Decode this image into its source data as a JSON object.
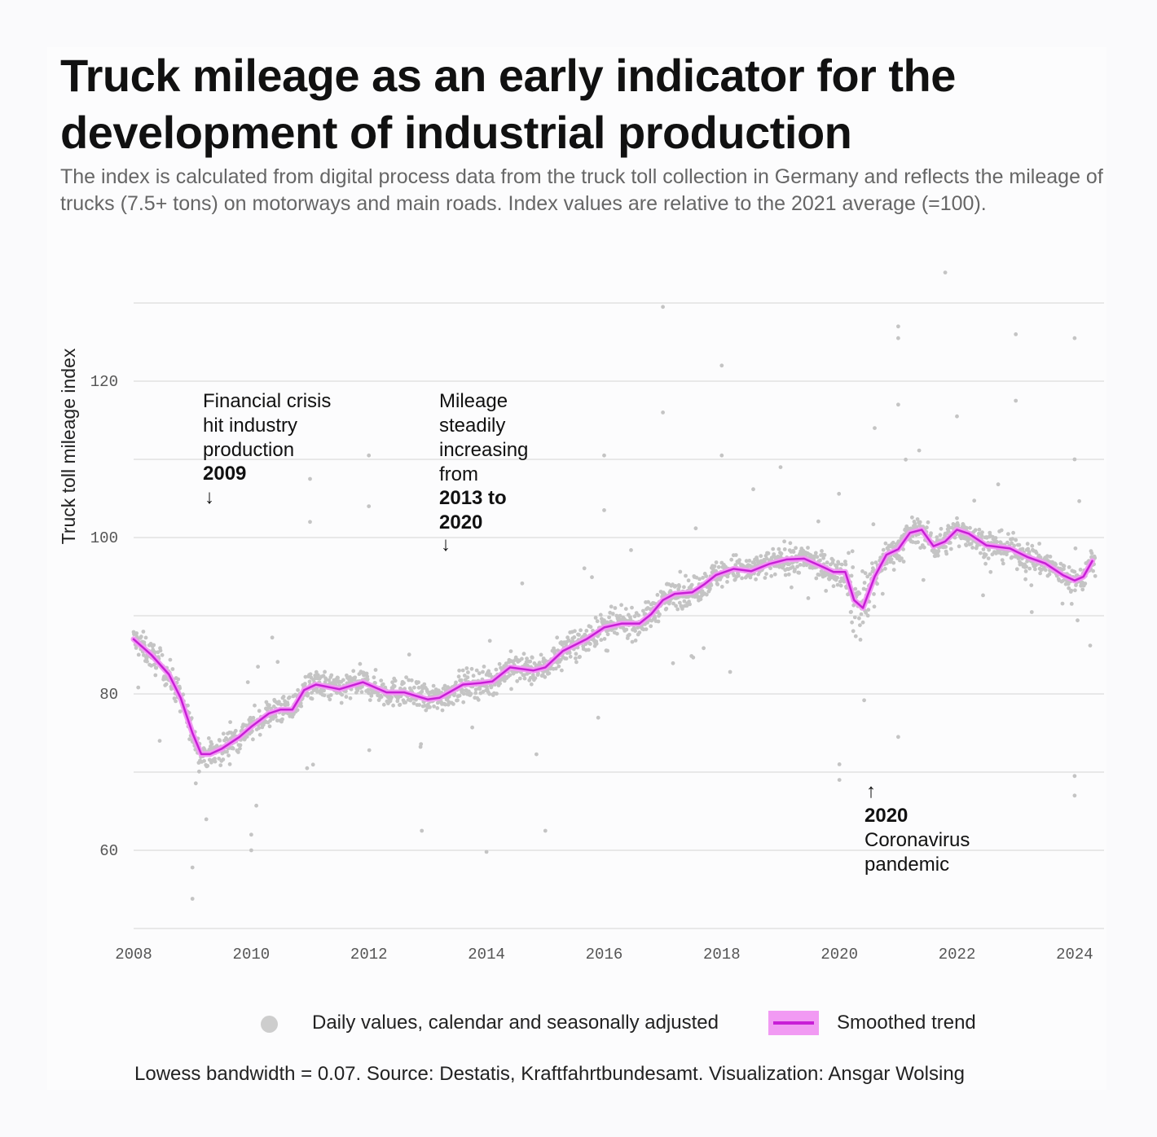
{
  "title": "Truck mileage as an early indicator for the development of industrial production",
  "subtitle": "The index is calculated from digital process data from the truck toll collection in Germany and reflects the mileage of trucks (7.5+ tons) on motorways and main roads. Index values are relative to the 2021 average (=100).",
  "legend": {
    "points_label": "Daily values, calendar and seasonally adjusted",
    "line_label": "Smoothed trend"
  },
  "caption": "Lowess bandwidth = 0.07. Source: Destatis, Kraftfahrtbundesamt. Visualization: Ansgar Wolsing",
  "colors": {
    "trend": "#c81ed6",
    "trend_band": "#f19af3",
    "points": "#c4c4c4",
    "grid": "#d4d4d4"
  },
  "chart_data": {
    "type": "scatter",
    "ylabel": "Truck toll mileage index",
    "xlabel": "",
    "xlim": [
      2008,
      2024.5
    ],
    "ylim": [
      50,
      130
    ],
    "x_ticks": [
      "2008",
      "2010",
      "2012",
      "2014",
      "2016",
      "2018",
      "2020",
      "2022",
      "2024"
    ],
    "y_ticks": [
      "60",
      "80",
      "100",
      "120"
    ],
    "gridlines_y": [
      50,
      60,
      70,
      80,
      90,
      100,
      110,
      120,
      130
    ],
    "series": [
      {
        "name": "Smoothed trend",
        "kind": "line",
        "x": [
          2008.0,
          2008.3,
          2008.6,
          2008.8,
          2009.0,
          2009.15,
          2009.3,
          2009.5,
          2009.8,
          2010.0,
          2010.3,
          2010.5,
          2010.7,
          2010.9,
          2011.1,
          2011.5,
          2011.9,
          2012.3,
          2012.6,
          2013.0,
          2013.2,
          2013.6,
          2013.9,
          2014.1,
          2014.4,
          2014.8,
          2015.0,
          2015.3,
          2015.7,
          2016.0,
          2016.3,
          2016.6,
          2016.8,
          2017.0,
          2017.2,
          2017.5,
          2017.7,
          2017.9,
          2018.2,
          2018.5,
          2018.8,
          2019.1,
          2019.4,
          2019.7,
          2019.9,
          2020.1,
          2020.25,
          2020.4,
          2020.6,
          2020.8,
          2021.0,
          2021.2,
          2021.4,
          2021.6,
          2021.8,
          2022.0,
          2022.2,
          2022.5,
          2022.9,
          2023.2,
          2023.5,
          2023.8,
          2024.0,
          2024.15,
          2024.3
        ],
        "values": [
          87.0,
          85.0,
          82.5,
          79.5,
          75.0,
          72.3,
          72.3,
          73.0,
          74.5,
          75.8,
          77.5,
          78.0,
          78.0,
          80.5,
          81.2,
          80.6,
          81.5,
          80.2,
          80.2,
          79.3,
          79.5,
          81.2,
          81.4,
          81.6,
          83.4,
          83.0,
          83.4,
          85.5,
          87.0,
          88.5,
          89.0,
          89.0,
          90.2,
          92.0,
          92.8,
          93.0,
          94.0,
          95.2,
          96.0,
          95.7,
          96.6,
          97.2,
          97.3,
          96.3,
          95.6,
          95.6,
          92.0,
          91.0,
          95.0,
          97.8,
          98.5,
          100.6,
          101.0,
          98.9,
          99.5,
          101.0,
          100.5,
          99.0,
          98.6,
          97.5,
          96.7,
          95.2,
          94.5,
          95.0,
          97.0
        ]
      },
      {
        "name": "Daily values, calendar and seasonally adjusted",
        "kind": "scatter",
        "note": "Daily scatter follows the trend with spread; notable outliers listed",
        "outliers": [
          {
            "x": 2009.0,
            "y": 53.8
          },
          {
            "x": 2009.0,
            "y": 57.8
          },
          {
            "x": 2010.0,
            "y": 60.0
          },
          {
            "x": 2010.0,
            "y": 62.0
          },
          {
            "x": 2011.0,
            "y": 107.5
          },
          {
            "x": 2011.0,
            "y": 102.0
          },
          {
            "x": 2012.0,
            "y": 110.5
          },
          {
            "x": 2012.0,
            "y": 104.0
          },
          {
            "x": 2012.9,
            "y": 62.5
          },
          {
            "x": 2014.0,
            "y": 59.8
          },
          {
            "x": 2015.0,
            "y": 62.5
          },
          {
            "x": 2016.0,
            "y": 110.5
          },
          {
            "x": 2016.0,
            "y": 103.5
          },
          {
            "x": 2017.0,
            "y": 129.5
          },
          {
            "x": 2017.0,
            "y": 116.0
          },
          {
            "x": 2018.0,
            "y": 122.0
          },
          {
            "x": 2018.0,
            "y": 110.5
          },
          {
            "x": 2019.0,
            "y": 109.0
          },
          {
            "x": 2020.0,
            "y": 69.0
          },
          {
            "x": 2020.0,
            "y": 71.0
          },
          {
            "x": 2020.6,
            "y": 114.0
          },
          {
            "x": 2021.0,
            "y": 127.0
          },
          {
            "x": 2021.0,
            "y": 125.5
          },
          {
            "x": 2021.0,
            "y": 117.0
          },
          {
            "x": 2021.0,
            "y": 74.5
          },
          {
            "x": 2021.8,
            "y": 133.9
          },
          {
            "x": 2022.0,
            "y": 115.5
          },
          {
            "x": 2023.0,
            "y": 126.0
          },
          {
            "x": 2023.0,
            "y": 117.5
          },
          {
            "x": 2024.0,
            "y": 125.5
          },
          {
            "x": 2024.0,
            "y": 110.0
          },
          {
            "x": 2024.0,
            "y": 69.5
          },
          {
            "x": 2024.0,
            "y": 67.0
          }
        ]
      }
    ],
    "annotations": [
      {
        "text": "Financial crisis hit industry production",
        "bold": "2009",
        "arrow": "↓",
        "x": 2009.2
      },
      {
        "text": "Mileage steadily increasing from",
        "bold": "2013 to 2020",
        "arrow": "↓",
        "x": 2013.3
      },
      {
        "text": "Coronavirus pandemic",
        "bold": "2020",
        "arrow": "↑",
        "x": 2020.4
      }
    ]
  }
}
